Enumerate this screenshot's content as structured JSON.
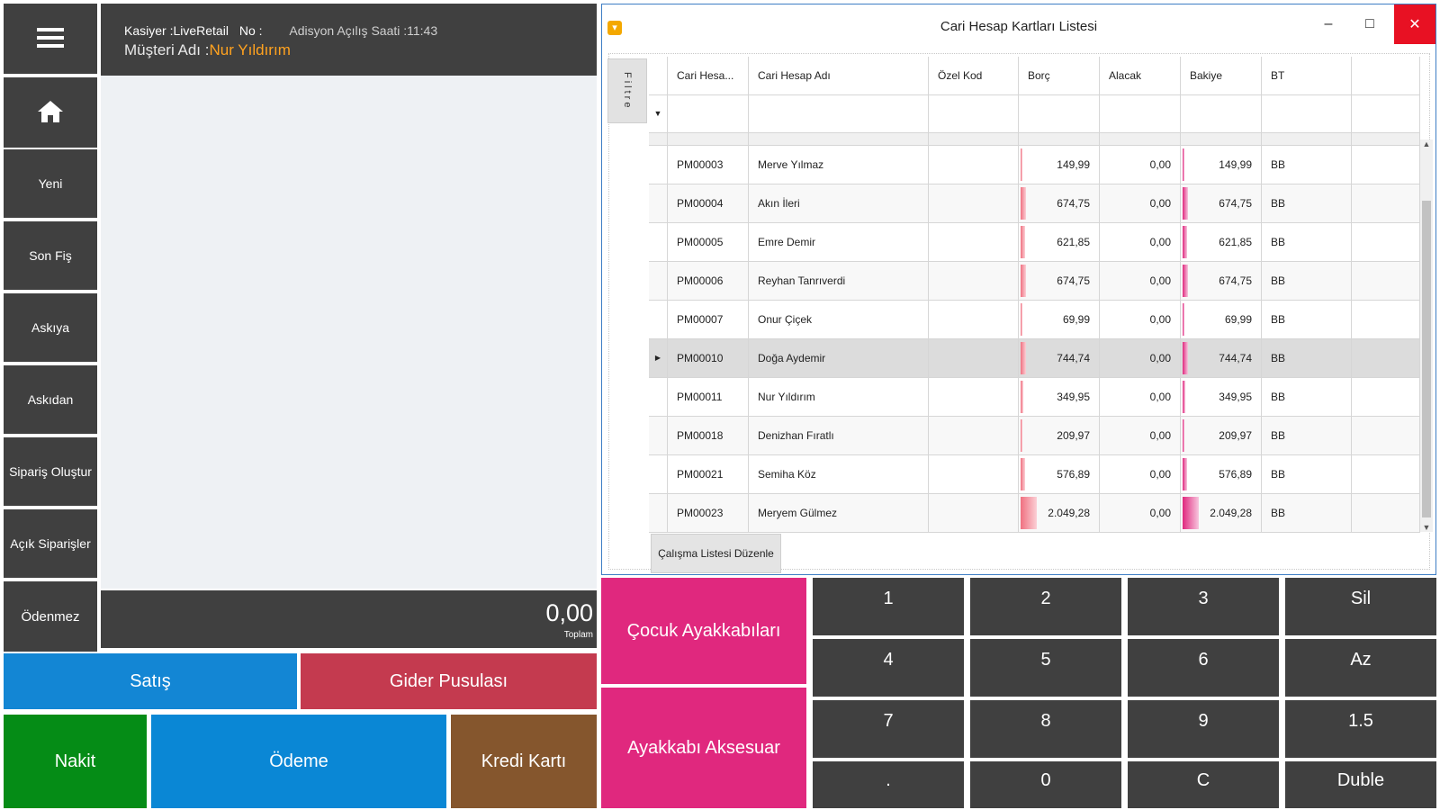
{
  "sidebar": {
    "menu_icon": "hamburger-icon",
    "home_icon": "home-icon",
    "items": [
      "Yeni",
      "Son Fiş",
      "Askıya",
      "Askıdan",
      "Sipariş Oluştur",
      "Açık Siparişler",
      "Ödenmez"
    ]
  },
  "header": {
    "cashier": "Kasiyer :LiveRetail",
    "no": "No :",
    "opening_time": "Adisyon Açılış Saati :11:43",
    "customer_label": "Müşteri Adı :",
    "customer_name": "Nur Yıldırım"
  },
  "total": {
    "amount": "0,00",
    "label": "Toplam"
  },
  "buttons": {
    "satis": "Satış",
    "gider": "Gider Pusulası",
    "nakit": "Nakit",
    "odeme": "Ödeme",
    "kredi": "Kredi Kartı"
  },
  "colors": {
    "dark_tile": "#404040",
    "satis": "#1386d4",
    "gider": "#c43a4f",
    "nakit": "#058c16",
    "odeme": "#0a87d5",
    "kredi": "#85562d",
    "category": "#e0287e",
    "customer_name": "#ffa21f"
  },
  "window": {
    "title": "Cari Hesap Kartları Listesi",
    "minimize": "–",
    "maximize": "□",
    "close": "✕",
    "filter_tab": "Filtre",
    "edit_button": "Çalışma Listesi Düzenle",
    "columns": [
      "Cari Hesa...",
      "Cari Hesap Adı",
      "Özel Kod",
      "Borç",
      "Alacak",
      "Bakiye",
      "BT"
    ],
    "rows": [
      {
        "code": "PM00003",
        "name": "Merve Yılmaz",
        "ozel": "",
        "borc": "149,99",
        "alacak": "0,00",
        "bakiye": "149,99",
        "bt": "BB",
        "ratio": 0.07
      },
      {
        "code": "PM00004",
        "name": "Akın İleri",
        "ozel": "",
        "borc": "674,75",
        "alacak": "0,00",
        "bakiye": "674,75",
        "bt": "BB",
        "ratio": 0.33
      },
      {
        "code": "PM00005",
        "name": "Emre Demir",
        "ozel": "",
        "borc": "621,85",
        "alacak": "0,00",
        "bakiye": "621,85",
        "bt": "BB",
        "ratio": 0.3
      },
      {
        "code": "PM00006",
        "name": "Reyhan Tanrıverdi",
        "ozel": "",
        "borc": "674,75",
        "alacak": "0,00",
        "bakiye": "674,75",
        "bt": "BB",
        "ratio": 0.33
      },
      {
        "code": "PM00007",
        "name": "Onur Çiçek",
        "ozel": "",
        "borc": "69,99",
        "alacak": "0,00",
        "bakiye": "69,99",
        "bt": "BB",
        "ratio": 0.03
      },
      {
        "code": "PM00010",
        "name": "Doğa Aydemir",
        "ozel": "",
        "borc": "744,74",
        "alacak": "0,00",
        "bakiye": "744,74",
        "bt": "BB",
        "ratio": 0.36
      },
      {
        "code": "PM00011",
        "name": "Nur Yıldırım",
        "ozel": "",
        "borc": "349,95",
        "alacak": "0,00",
        "bakiye": "349,95",
        "bt": "BB",
        "ratio": 0.17
      },
      {
        "code": "PM00018",
        "name": "Denizhan Fıratlı",
        "ozel": "",
        "borc": "209,97",
        "alacak": "0,00",
        "bakiye": "209,97",
        "bt": "BB",
        "ratio": 0.1
      },
      {
        "code": "PM00021",
        "name": "Semiha Köz",
        "ozel": "",
        "borc": "576,89",
        "alacak": "0,00",
        "bakiye": "576,89",
        "bt": "BB",
        "ratio": 0.28
      },
      {
        "code": "PM00023",
        "name": "Meryem Gülmez",
        "ozel": "",
        "borc": "2.049,28",
        "alacak": "0,00",
        "bakiye": "2.049,28",
        "bt": "BB",
        "ratio": 1.0
      }
    ],
    "selected_code": "PM00010"
  },
  "categories": [
    "Çocuk Ayakkabıları",
    "Ayakkabı Aksesuar"
  ],
  "keypad": [
    "1",
    "2",
    "3",
    "Sil",
    "4",
    "5",
    "6",
    "Az",
    "7",
    "8",
    "9",
    "1.5",
    ".",
    "0",
    "C",
    "Duble"
  ]
}
